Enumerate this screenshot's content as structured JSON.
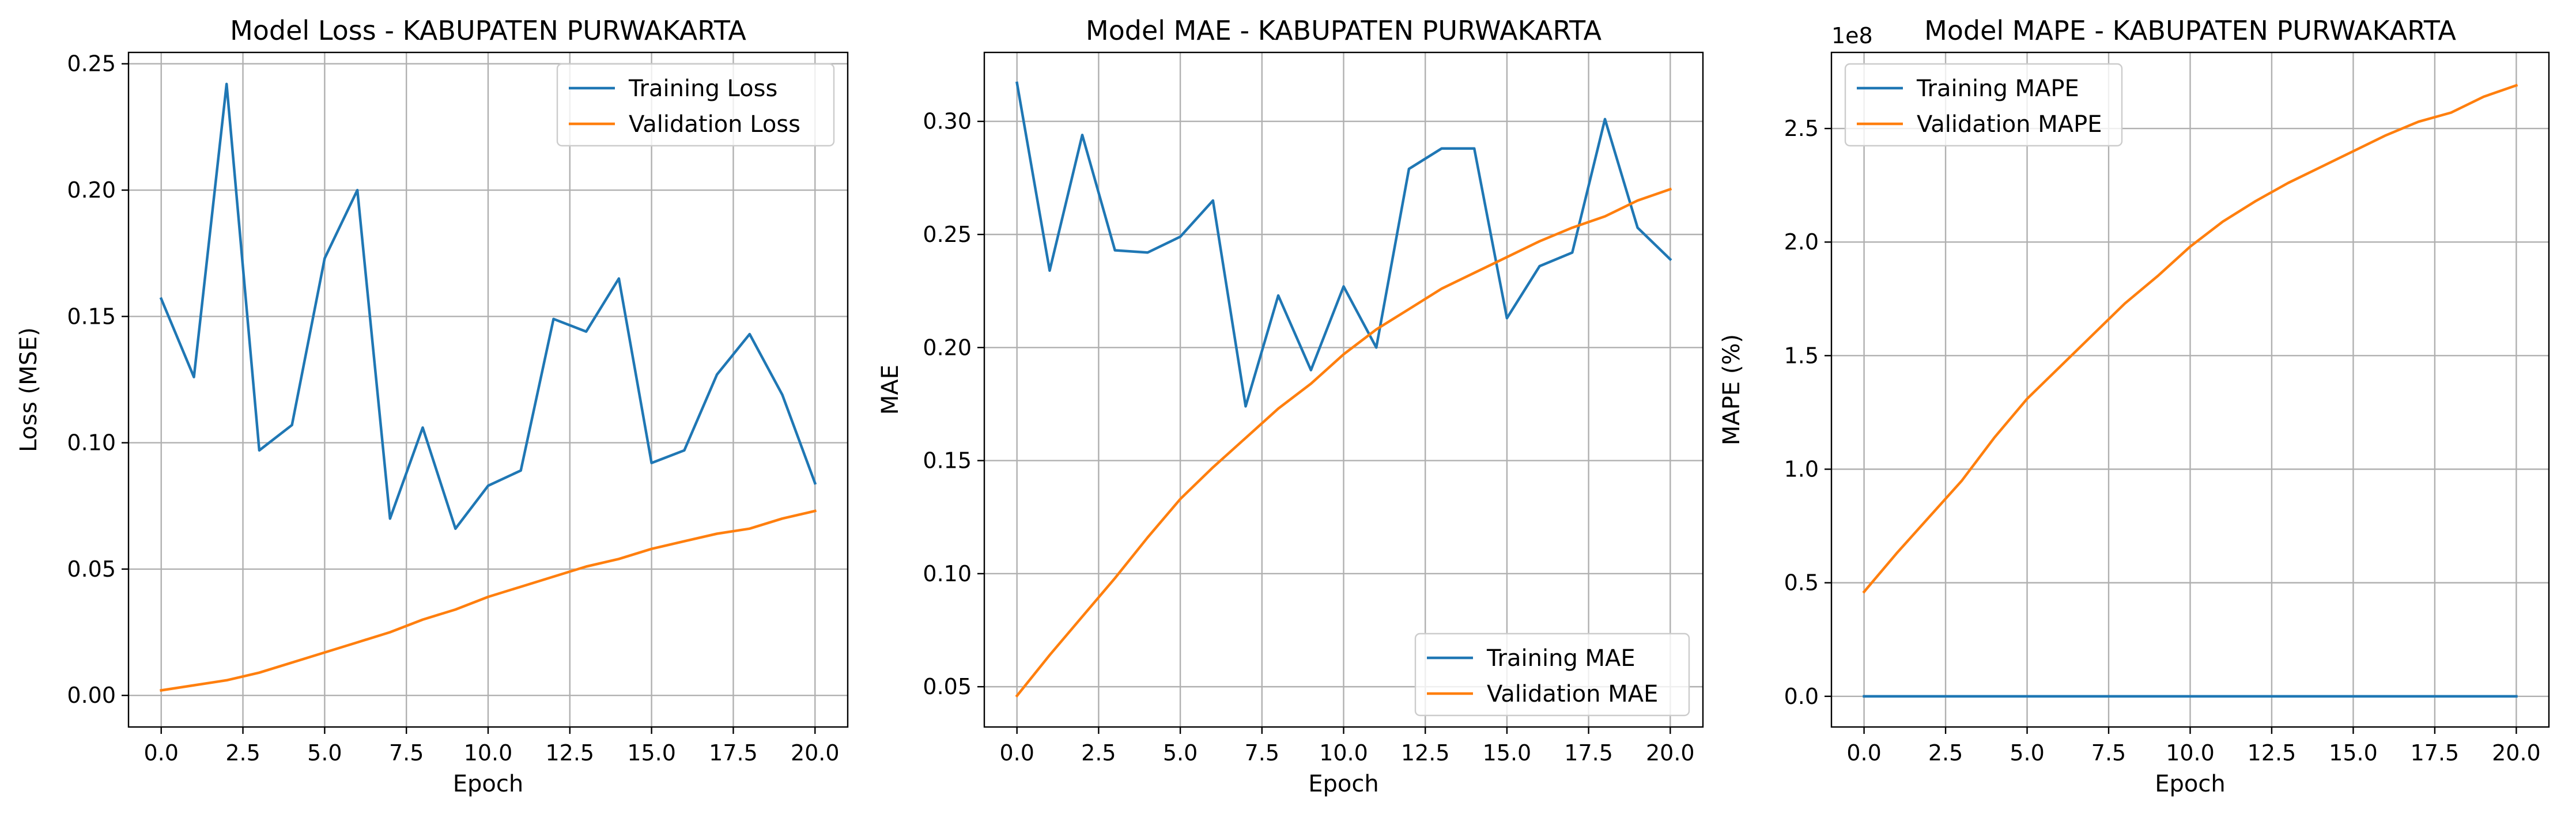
{
  "chart_data": [
    {
      "type": "line",
      "title": "Model Loss - KABUPATEN PURWAKARTA",
      "xlabel": "Epoch",
      "ylabel": "Loss (MSE)",
      "xlim": [
        -1,
        21
      ],
      "ylim": [
        -0.0125,
        0.2545
      ],
      "xticks": [
        0.0,
        2.5,
        5.0,
        7.5,
        10.0,
        12.5,
        15.0,
        17.5,
        20.0
      ],
      "xtick_labels": [
        "0.0",
        "2.5",
        "5.0",
        "7.5",
        "10.0",
        "12.5",
        "15.0",
        "17.5",
        "20.0"
      ],
      "yticks": [
        0.0,
        0.05,
        0.1,
        0.15,
        0.2,
        0.25
      ],
      "ytick_labels": [
        "0.00",
        "0.05",
        "0.10",
        "0.15",
        "0.20",
        "0.25"
      ],
      "grid": true,
      "legend": "top-right",
      "x": [
        0,
        1,
        2,
        3,
        4,
        5,
        6,
        7,
        8,
        9,
        10,
        11,
        12,
        13,
        14,
        15,
        16,
        17,
        18,
        19,
        20
      ],
      "series": [
        {
          "name": "Training Loss",
          "color": "#1f77b4",
          "values": [
            0.157,
            0.126,
            0.242,
            0.097,
            0.107,
            0.173,
            0.2,
            0.07,
            0.106,
            0.066,
            0.083,
            0.089,
            0.149,
            0.144,
            0.165,
            0.092,
            0.097,
            0.127,
            0.143,
            0.119,
            0.084
          ]
        },
        {
          "name": "Validation Loss",
          "color": "#ff7f0e",
          "values": [
            0.002,
            0.004,
            0.006,
            0.009,
            0.013,
            0.017,
            0.021,
            0.025,
            0.03,
            0.034,
            0.039,
            0.043,
            0.047,
            0.051,
            0.054,
            0.058,
            0.061,
            0.064,
            0.066,
            0.07,
            0.073
          ]
        }
      ]
    },
    {
      "type": "line",
      "title": "Model MAE - KABUPATEN PURWAKARTA",
      "xlabel": "Epoch",
      "ylabel": "MAE",
      "xlim": [
        -1,
        21
      ],
      "ylim": [
        0.0322,
        0.3305
      ],
      "xticks": [
        0.0,
        2.5,
        5.0,
        7.5,
        10.0,
        12.5,
        15.0,
        17.5,
        20.0
      ],
      "xtick_labels": [
        "0.0",
        "2.5",
        "5.0",
        "7.5",
        "10.0",
        "12.5",
        "15.0",
        "17.5",
        "20.0"
      ],
      "yticks": [
        0.05,
        0.1,
        0.15,
        0.2,
        0.25,
        0.3
      ],
      "ytick_labels": [
        "0.05",
        "0.10",
        "0.15",
        "0.20",
        "0.25",
        "0.30"
      ],
      "grid": true,
      "legend": "bottom-right",
      "x": [
        0,
        1,
        2,
        3,
        4,
        5,
        6,
        7,
        8,
        9,
        10,
        11,
        12,
        13,
        14,
        15,
        16,
        17,
        18,
        19,
        20
      ],
      "series": [
        {
          "name": "Training MAE",
          "color": "#1f77b4",
          "values": [
            0.317,
            0.234,
            0.294,
            0.243,
            0.242,
            0.249,
            0.265,
            0.174,
            0.223,
            0.19,
            0.227,
            0.2,
            0.279,
            0.288,
            0.288,
            0.213,
            0.236,
            0.242,
            0.301,
            0.253,
            0.239
          ]
        },
        {
          "name": "Validation MAE",
          "color": "#ff7f0e",
          "values": [
            0.046,
            0.064,
            0.081,
            0.098,
            0.116,
            0.133,
            0.147,
            0.16,
            0.173,
            0.184,
            0.197,
            0.208,
            0.217,
            0.226,
            0.233,
            0.24,
            0.247,
            0.253,
            0.258,
            0.265,
            0.27
          ]
        }
      ]
    },
    {
      "type": "line",
      "title": "Model MAPE - KABUPATEN PURWAKARTA",
      "xlabel": "Epoch",
      "ylabel": "MAPE (%)",
      "y_offset_label": "1e8",
      "xlim": [
        -1,
        21
      ],
      "ylim": [
        -13500000,
        283500000
      ],
      "xticks": [
        0.0,
        2.5,
        5.0,
        7.5,
        10.0,
        12.5,
        15.0,
        17.5,
        20.0
      ],
      "xtick_labels": [
        "0.0",
        "2.5",
        "5.0",
        "7.5",
        "10.0",
        "12.5",
        "15.0",
        "17.5",
        "20.0"
      ],
      "yticks": [
        0,
        50000000,
        100000000,
        150000000,
        200000000,
        250000000
      ],
      "ytick_labels": [
        "0.0",
        "0.5",
        "1.0",
        "1.5",
        "2.0",
        "2.5"
      ],
      "grid": true,
      "legend": "top-left",
      "x": [
        0,
        1,
        2,
        3,
        4,
        5,
        6,
        7,
        8,
        9,
        10,
        11,
        12,
        13,
        14,
        15,
        16,
        17,
        18,
        19,
        20
      ],
      "series": [
        {
          "name": "Training MAPE",
          "color": "#1f77b4",
          "values": [
            0,
            0,
            0,
            0,
            0,
            0,
            0,
            0,
            0,
            0,
            0,
            0,
            0,
            0,
            0,
            0,
            0,
            0,
            0,
            0,
            0
          ]
        },
        {
          "name": "Validation MAPE",
          "color": "#ff7f0e",
          "values": [
            46000000,
            63000000,
            79000000,
            95000000,
            114000000,
            131000000,
            145000000,
            159000000,
            173000000,
            185000000,
            198000000,
            209000000,
            218000000,
            226000000,
            233000000,
            240000000,
            247000000,
            253000000,
            257000000,
            264000000,
            269000000
          ]
        }
      ]
    }
  ]
}
